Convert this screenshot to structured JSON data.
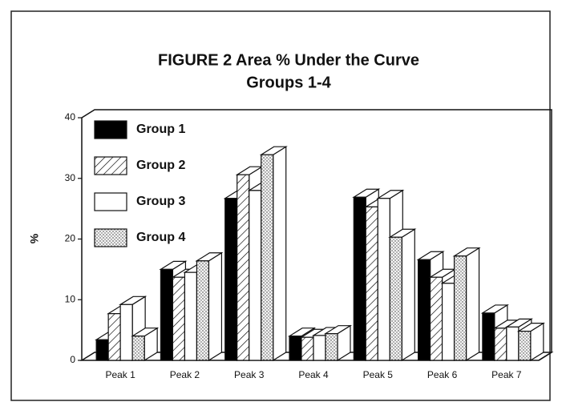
{
  "chart_data": {
    "type": "bar3d",
    "title": "FIGURE 2  Area % Under the Curve",
    "subtitle": "Groups 1-4",
    "y_label": "%",
    "categories": [
      "Peak 1",
      "Peak 2",
      "Peak 3",
      "Peak 4",
      "Peak 5",
      "Peak 6",
      "Peak 7"
    ],
    "series": [
      {
        "name": "Group 1",
        "color": "#000000",
        "pattern": "solid",
        "values": [
          3.4,
          15,
          26.7,
          4.0,
          26.9,
          16.6,
          7.8
        ]
      },
      {
        "name": "Group 2",
        "color": "#000000",
        "pattern": "hatch",
        "values": [
          7.7,
          13.7,
          30.6,
          3.8,
          25.3,
          13.7,
          5.3
        ]
      },
      {
        "name": "Group 3",
        "color": "#000000",
        "pattern": "none",
        "values": [
          9.2,
          14.5,
          28,
          4.1,
          26.7,
          12.7,
          5.5
        ]
      },
      {
        "name": "Group 4",
        "color": "#000000",
        "pattern": "dots",
        "values": [
          4.0,
          16.4,
          33.9,
          4.4,
          20.3,
          17.2,
          4.8
        ]
      }
    ],
    "ylim": [
      0,
      40
    ],
    "yticks": [
      0,
      10,
      20,
      30,
      40
    ],
    "legend": "upper left"
  }
}
